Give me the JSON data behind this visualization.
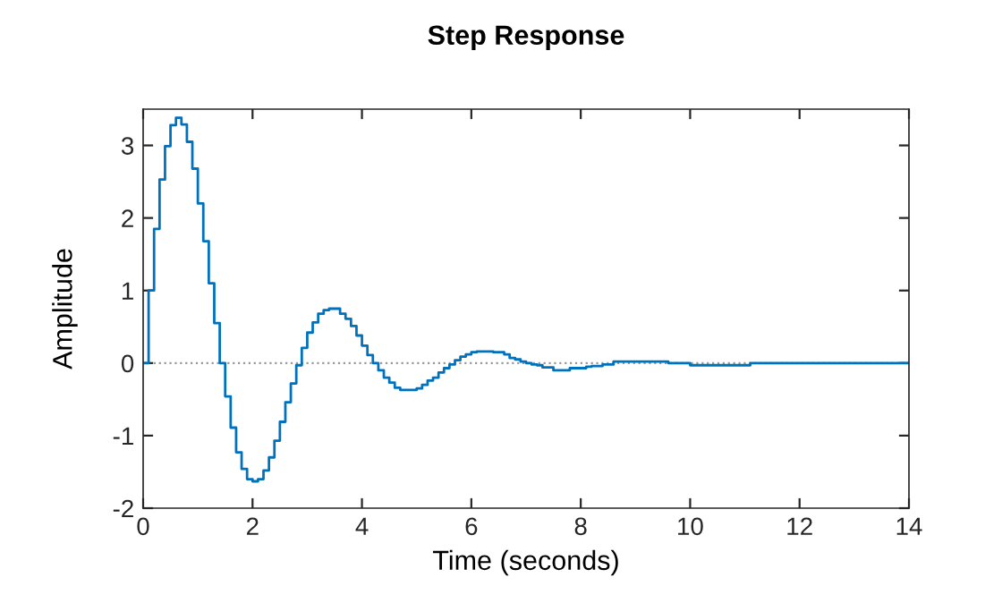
{
  "chart_data": {
    "type": "step",
    "title": "Step Response",
    "xlabel": "Time (seconds)",
    "ylabel": "Amplitude",
    "xlim": [
      0,
      14
    ],
    "xticks": [
      0,
      2,
      4,
      6,
      8,
      10,
      12,
      14
    ],
    "ylim": [
      -2,
      3.5
    ],
    "yticks": [
      -2,
      -1,
      0,
      1,
      2,
      3
    ],
    "grid": false,
    "legend": false,
    "ref_lines": [
      {
        "axis": "y",
        "value": 0,
        "color": "#999999",
        "line_style": "dotted"
      }
    ],
    "series": [
      {
        "color": "#0072bd",
        "x": [
          0,
          0.1,
          0.2,
          0.3,
          0.4,
          0.5,
          0.6,
          0.7,
          0.8,
          0.9,
          1.0,
          1.1,
          1.2,
          1.3,
          1.4,
          1.5,
          1.6,
          1.7,
          1.8,
          1.9,
          2.0,
          2.1,
          2.2,
          2.3,
          2.4,
          2.5,
          2.6,
          2.7,
          2.8,
          2.9,
          3.0,
          3.1,
          3.2,
          3.3,
          3.4,
          3.6,
          3.7,
          3.8,
          3.9,
          4.0,
          4.1,
          4.2,
          4.3,
          4.4,
          4.5,
          4.6,
          4.7,
          5.0,
          5.1,
          5.2,
          5.3,
          5.4,
          5.5,
          5.6,
          5.7,
          5.8,
          5.9,
          6.0,
          6.1,
          6.4,
          6.6,
          6.7,
          6.8,
          6.9,
          7.0,
          7.1,
          7.2,
          7.3,
          7.5,
          7.8,
          8.1,
          8.2,
          8.4,
          8.6,
          9.6,
          10.0,
          11.1,
          14
        ],
        "values": [
          0,
          1.0,
          1.85,
          2.53,
          2.99,
          3.28,
          3.38,
          3.29,
          3.05,
          2.68,
          2.2,
          1.68,
          1.1,
          0.55,
          0.0,
          -0.46,
          -0.89,
          -1.23,
          -1.46,
          -1.6,
          -1.63,
          -1.6,
          -1.48,
          -1.3,
          -1.07,
          -0.81,
          -0.54,
          -0.28,
          -0.03,
          0.21,
          0.42,
          0.56,
          0.68,
          0.73,
          0.75,
          0.68,
          0.61,
          0.51,
          0.38,
          0.24,
          0.11,
          0.0,
          -0.1,
          -0.2,
          -0.27,
          -0.34,
          -0.37,
          -0.35,
          -0.3,
          -0.24,
          -0.2,
          -0.13,
          -0.07,
          -0.02,
          0.04,
          0.09,
          0.12,
          0.15,
          0.16,
          0.15,
          0.12,
          0.07,
          0.05,
          0.02,
          0.0,
          -0.02,
          -0.03,
          -0.06,
          -0.1,
          -0.07,
          -0.05,
          -0.04,
          -0.02,
          0.02,
          0.0,
          -0.03,
          0.0,
          0.0
        ]
      }
    ]
  }
}
